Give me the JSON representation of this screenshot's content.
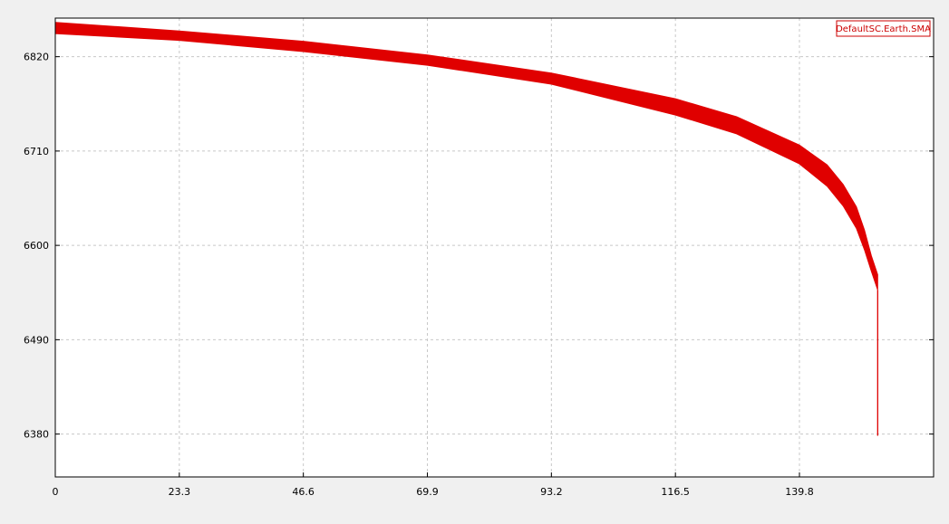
{
  "colors": {
    "background": "#f0f0f0",
    "plot_background": "#ffffff",
    "series": "#e00000",
    "grid": "#c8c8c8",
    "legend_border": "#cc0000"
  },
  "chart_data": {
    "type": "area",
    "title": "",
    "xlabel": "",
    "ylabel": "",
    "xlim": [
      0,
      165
    ],
    "ylim": [
      6330,
      6865
    ],
    "x_ticks": [
      "0",
      "23.3",
      "46.6",
      "69.9",
      "93.2",
      "116.5",
      "139.8"
    ],
    "y_ticks": [
      "6380",
      "6490",
      "6600",
      "6710",
      "6820"
    ],
    "grid": true,
    "legend_position": "top-right",
    "series": [
      {
        "name": "DefaultSC.Earth.SMA",
        "x": [
          0,
          23.3,
          46.6,
          69.9,
          93.2,
          116.5,
          128,
          139.8,
          145,
          148,
          150.5,
          152,
          153.3,
          154.5
        ],
        "upper": [
          6860,
          6850,
          6838,
          6822,
          6801,
          6771,
          6750,
          6717,
          6694,
          6671,
          6645,
          6618,
          6588,
          6566
        ],
        "lower": [
          6847,
          6839,
          6826,
          6810,
          6788,
          6752,
          6730,
          6695,
          6669,
          6646,
          6620,
          6595,
          6570,
          6548
        ],
        "tail_min": 6378
      }
    ]
  }
}
